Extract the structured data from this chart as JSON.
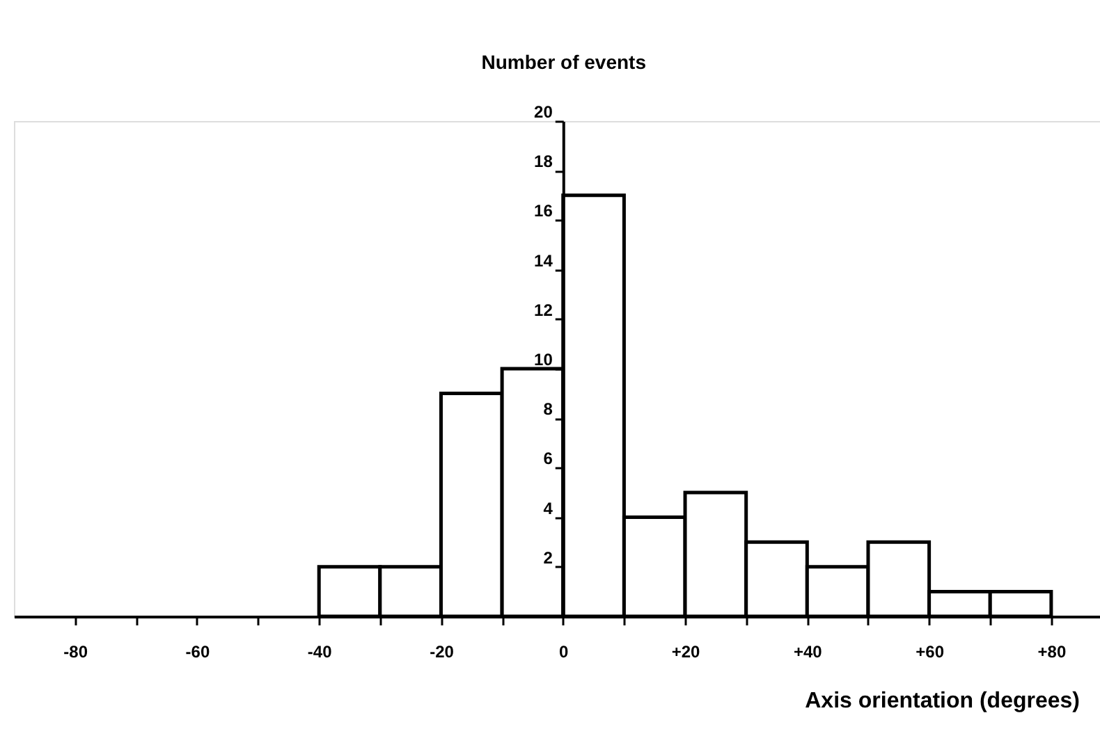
{
  "chart_data": {
    "type": "histogram",
    "xlabel": "Axis orientation (degrees)",
    "ylabel": "Number of events",
    "bins": [
      -40,
      -30,
      -20,
      -10,
      0,
      10,
      20,
      30,
      40,
      50,
      60,
      70,
      80
    ],
    "values": [
      2,
      2,
      9,
      10,
      17,
      4,
      5,
      3,
      2,
      3,
      1,
      1
    ],
    "color": "#ffffff",
    "xlim": [
      -90,
      88
    ],
    "xticks": [
      {
        "value": -80,
        "label": "-80"
      },
      {
        "value": -70,
        "label": null
      },
      {
        "value": -60,
        "label": "-60"
      },
      {
        "value": -50,
        "label": null
      },
      {
        "value": -40,
        "label": "-40"
      },
      {
        "value": -30,
        "label": null
      },
      {
        "value": -20,
        "label": "-20"
      },
      {
        "value": -10,
        "label": null
      },
      {
        "value": 0,
        "label": "0"
      },
      {
        "value": 10,
        "label": null
      },
      {
        "value": 20,
        "label": "+20"
      },
      {
        "value": 30,
        "label": null
      },
      {
        "value": 40,
        "label": "+40"
      },
      {
        "value": 50,
        "label": null
      },
      {
        "value": 60,
        "label": "+60"
      },
      {
        "value": 70,
        "label": null
      },
      {
        "value": 80,
        "label": "+80"
      }
    ],
    "ylim": [
      0,
      20
    ],
    "yticks": [
      2,
      4,
      6,
      8,
      10,
      12,
      14,
      16,
      18,
      20
    ],
    "grid": false
  }
}
